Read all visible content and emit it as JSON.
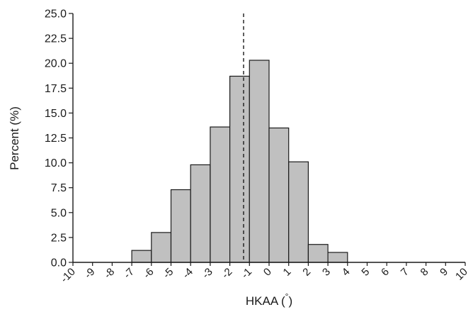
{
  "chart_data": {
    "type": "bar",
    "title": "",
    "xlabel": "HKAA (",
    "xlabel_unit": "°",
    "xlabel_close": ")",
    "ylabel": "Percent (%)",
    "xlim": [
      -10,
      10
    ],
    "ylim": [
      0,
      25
    ],
    "x_ticks": [
      -10,
      -9,
      -8,
      -7,
      -6,
      -5,
      -4,
      -3,
      -2,
      -1,
      0,
      1,
      2,
      3,
      4,
      5,
      6,
      7,
      8,
      9,
      10
    ],
    "x_tick_labels": [
      "-10",
      "-9",
      "-8",
      "-7",
      "-6",
      "-5",
      "-4",
      "-3",
      "-2",
      "-1",
      "0",
      "1",
      "2",
      "3",
      "4",
      "5",
      "6",
      "7",
      "8",
      "9",
      "10"
    ],
    "y_ticks": [
      0,
      2.5,
      5,
      7.5,
      10,
      12.5,
      15,
      17.5,
      20,
      22.5,
      25
    ],
    "y_tick_labels": [
      "0.0",
      "2.5",
      "5.0",
      "7.5",
      "10.0",
      "12.5",
      "15.0",
      "17.5",
      "20.0",
      "22.5",
      "25.0"
    ],
    "bins": [
      {
        "start": -7,
        "end": -6,
        "value": 1.2
      },
      {
        "start": -6,
        "end": -5,
        "value": 3.0
      },
      {
        "start": -5,
        "end": -4,
        "value": 7.3
      },
      {
        "start": -4,
        "end": -3,
        "value": 9.8
      },
      {
        "start": -3,
        "end": -2,
        "value": 13.6
      },
      {
        "start": -2,
        "end": -1,
        "value": 18.7
      },
      {
        "start": -1,
        "end": 0,
        "value": 20.3
      },
      {
        "start": 0,
        "end": 1,
        "value": 13.5
      },
      {
        "start": 1,
        "end": 2,
        "value": 10.1
      },
      {
        "start": 2,
        "end": 3,
        "value": 1.8
      },
      {
        "start": 3,
        "end": 4,
        "value": 1.0
      }
    ],
    "reference_line": {
      "x": -1.3,
      "style": "dashed"
    },
    "grid": false,
    "legend": "none",
    "colors": {
      "bar_fill": "#c0c0c0",
      "bar_stroke": "#1a1a1a",
      "axis": "#1a1a1a"
    }
  }
}
